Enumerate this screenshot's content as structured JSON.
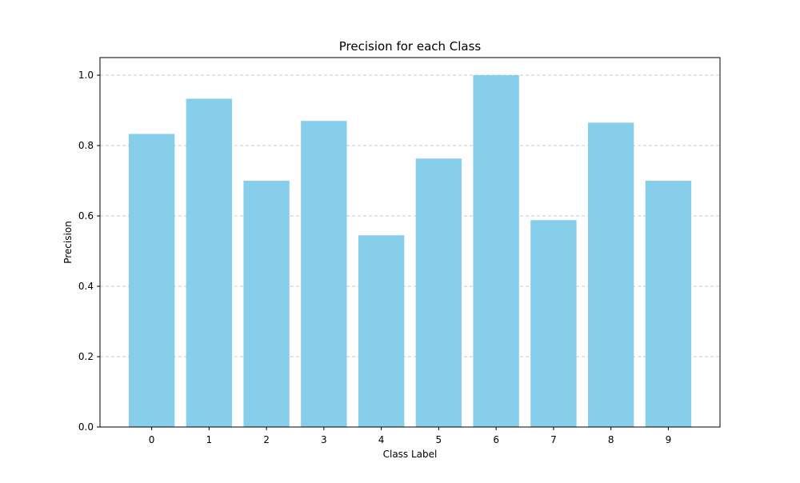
{
  "chart_data": {
    "type": "bar",
    "title": "Precision for each Class",
    "xlabel": "Class Label",
    "ylabel": "Precision",
    "categories": [
      "0",
      "1",
      "2",
      "3",
      "4",
      "5",
      "6",
      "7",
      "8",
      "9"
    ],
    "values": [
      0.833,
      0.933,
      0.7,
      0.87,
      0.545,
      0.763,
      1.0,
      0.588,
      0.865,
      0.7
    ],
    "ylim": [
      0,
      1.05
    ],
    "yticks": [
      0.0,
      0.2,
      0.4,
      0.6,
      0.8,
      1.0
    ],
    "ytick_labels": [
      "0.0",
      "0.2",
      "0.4",
      "0.6",
      "0.8",
      "1.0"
    ],
    "grid": "y-dashed",
    "legend": "none",
    "colors": {
      "bar": "#87ceeb",
      "grid": "#c8c8c8",
      "axis": "#000000"
    }
  }
}
